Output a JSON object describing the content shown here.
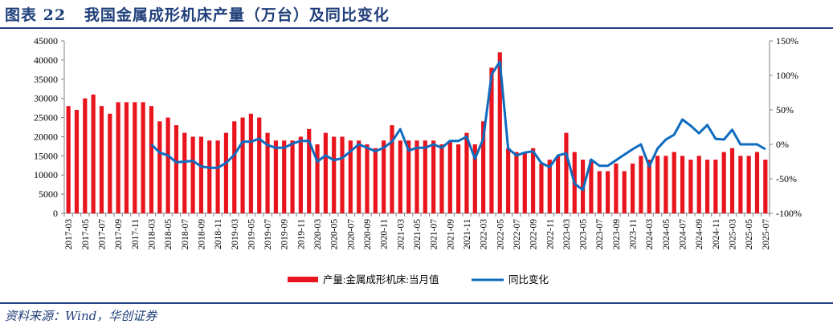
{
  "title": "图表 22   我国金属成形机床产量（万台）及同比变化",
  "source": "资料来源：Wind，华创证券",
  "chart_data": {
    "type": "bar+line",
    "categories": [
      "2017-03",
      "2017-04",
      "2017-05",
      "2017-06",
      "2017-07",
      "2017-08",
      "2017-09",
      "2017-10",
      "2017-11",
      "2017-12",
      "2018-03",
      "2018-04",
      "2018-05",
      "2018-06",
      "2018-07",
      "2018-08",
      "2018-09",
      "2018-10",
      "2018-11",
      "2018-12",
      "2019-03",
      "2019-04",
      "2019-05",
      "2019-06",
      "2019-07",
      "2019-08",
      "2019-09",
      "2019-10",
      "2019-11",
      "2019-12",
      "2020-03",
      "2020-04",
      "2020-05",
      "2020-06",
      "2020-07",
      "2020-08",
      "2020-09",
      "2020-10",
      "2020-11",
      "2020-12",
      "2021-03",
      "2021-04",
      "2021-05",
      "2021-06",
      "2021-07",
      "2021-08",
      "2021-09",
      "2021-10",
      "2021-11",
      "2021-12",
      "2022-03",
      "2022-04",
      "2022-05",
      "2022-06",
      "2022-07",
      "2022-08",
      "2022-09",
      "2022-10",
      "2022-11",
      "2022-12",
      "2023-03",
      "2023-04",
      "2023-05",
      "2023-06",
      "2023-07",
      "2023-08",
      "2023-09",
      "2023-10",
      "2023-11",
      "2023-12",
      "2024-03",
      "2024-04",
      "2024-05",
      "2024-06",
      "2024-07",
      "2024-08",
      "2024-09",
      "2024-10",
      "2024-11",
      "2024-12",
      "2025-03",
      "2025-04",
      "2025-05",
      "2025-06",
      "2025-07"
    ],
    "series": [
      {
        "name": "产量:金属成形机床:当月值",
        "type": "bar",
        "axis": "left",
        "color": "#e8141e",
        "values": [
          28000,
          27000,
          30000,
          31000,
          28000,
          26000,
          29000,
          29000,
          29000,
          29000,
          28000,
          24000,
          25000,
          23000,
          21000,
          20000,
          20000,
          19000,
          19000,
          21000,
          24000,
          25000,
          26000,
          25000,
          21000,
          19000,
          19000,
          19000,
          20000,
          22000,
          18000,
          21000,
          20000,
          20000,
          19000,
          19000,
          18000,
          17000,
          19000,
          23000,
          19000,
          19000,
          19000,
          19000,
          19000,
          18000,
          19000,
          18000,
          21000,
          18000,
          24000,
          38000,
          42000,
          17000,
          16000,
          16000,
          17000,
          13000,
          14000,
          15000,
          21000,
          16000,
          14000,
          14000,
          11000,
          11000,
          13000,
          11000,
          13000,
          15000,
          14000,
          15000,
          15000,
          16000,
          15000,
          14000,
          15000,
          14000,
          14000,
          16000,
          17000,
          15000,
          15000,
          16000,
          14000
        ]
      },
      {
        "name": "同比变化",
        "type": "line",
        "axis": "right",
        "color": "#0e6bbf",
        "unit": "%",
        "values": [
          null,
          null,
          null,
          null,
          null,
          null,
          null,
          null,
          null,
          null,
          0,
          -12,
          -16,
          -26,
          -25,
          -24,
          -32,
          -34,
          -34,
          -27,
          -15,
          4,
          4,
          8,
          -1,
          -5,
          -5,
          1,
          5,
          5,
          -25,
          -16,
          -23,
          -20,
          -10,
          0,
          -5,
          -10,
          -5,
          4,
          22,
          -9,
          -5,
          -5,
          0,
          -5,
          5,
          5,
          11,
          -21,
          8,
          101,
          120,
          -6,
          -16,
          -12,
          -10,
          -27,
          -33,
          -16,
          -13,
          -57,
          -66,
          -22,
          -31,
          -31,
          -23,
          -15,
          -7,
          0,
          -32,
          -6,
          7,
          14,
          36,
          27,
          16,
          28,
          8,
          7,
          21,
          0,
          0,
          0,
          -7
        ]
      }
    ],
    "x_tick_labels": [
      "2017-03",
      "2017-05",
      "2017-07",
      "2017-09",
      "2017-11",
      "2018-03",
      "2018-05",
      "2018-07",
      "2018-09",
      "2018-11",
      "2019-03",
      "2019-05",
      "2019-07",
      "2019-09",
      "2019-11",
      "2020-03",
      "2020-05",
      "2020-07",
      "2020-09",
      "2020-11",
      "2021-03",
      "2021-05",
      "2021-07",
      "2021-09",
      "2021-11",
      "2022-03",
      "2022-05",
      "2022-07",
      "2022-09",
      "2022-11",
      "2023-03",
      "2023-05",
      "2023-07",
      "2023-09",
      "2023-11",
      "2024-03",
      "2024-05",
      "2024-07",
      "2024-09",
      "2024-11",
      "2025-03",
      "2025-05",
      "2025-07"
    ],
    "y_left": {
      "ylim": [
        0,
        45000
      ],
      "ticks": [
        "0",
        "5000",
        "10000",
        "15000",
        "20000",
        "25000",
        "30000",
        "35000",
        "40000",
        "45000"
      ]
    },
    "y_right": {
      "ylim": [
        -100,
        150
      ],
      "ticks": [
        "-100%",
        "-50%",
        "0%",
        "50%",
        "100%",
        "150%"
      ]
    },
    "legend": {
      "position": "bottom"
    },
    "grid": false
  }
}
